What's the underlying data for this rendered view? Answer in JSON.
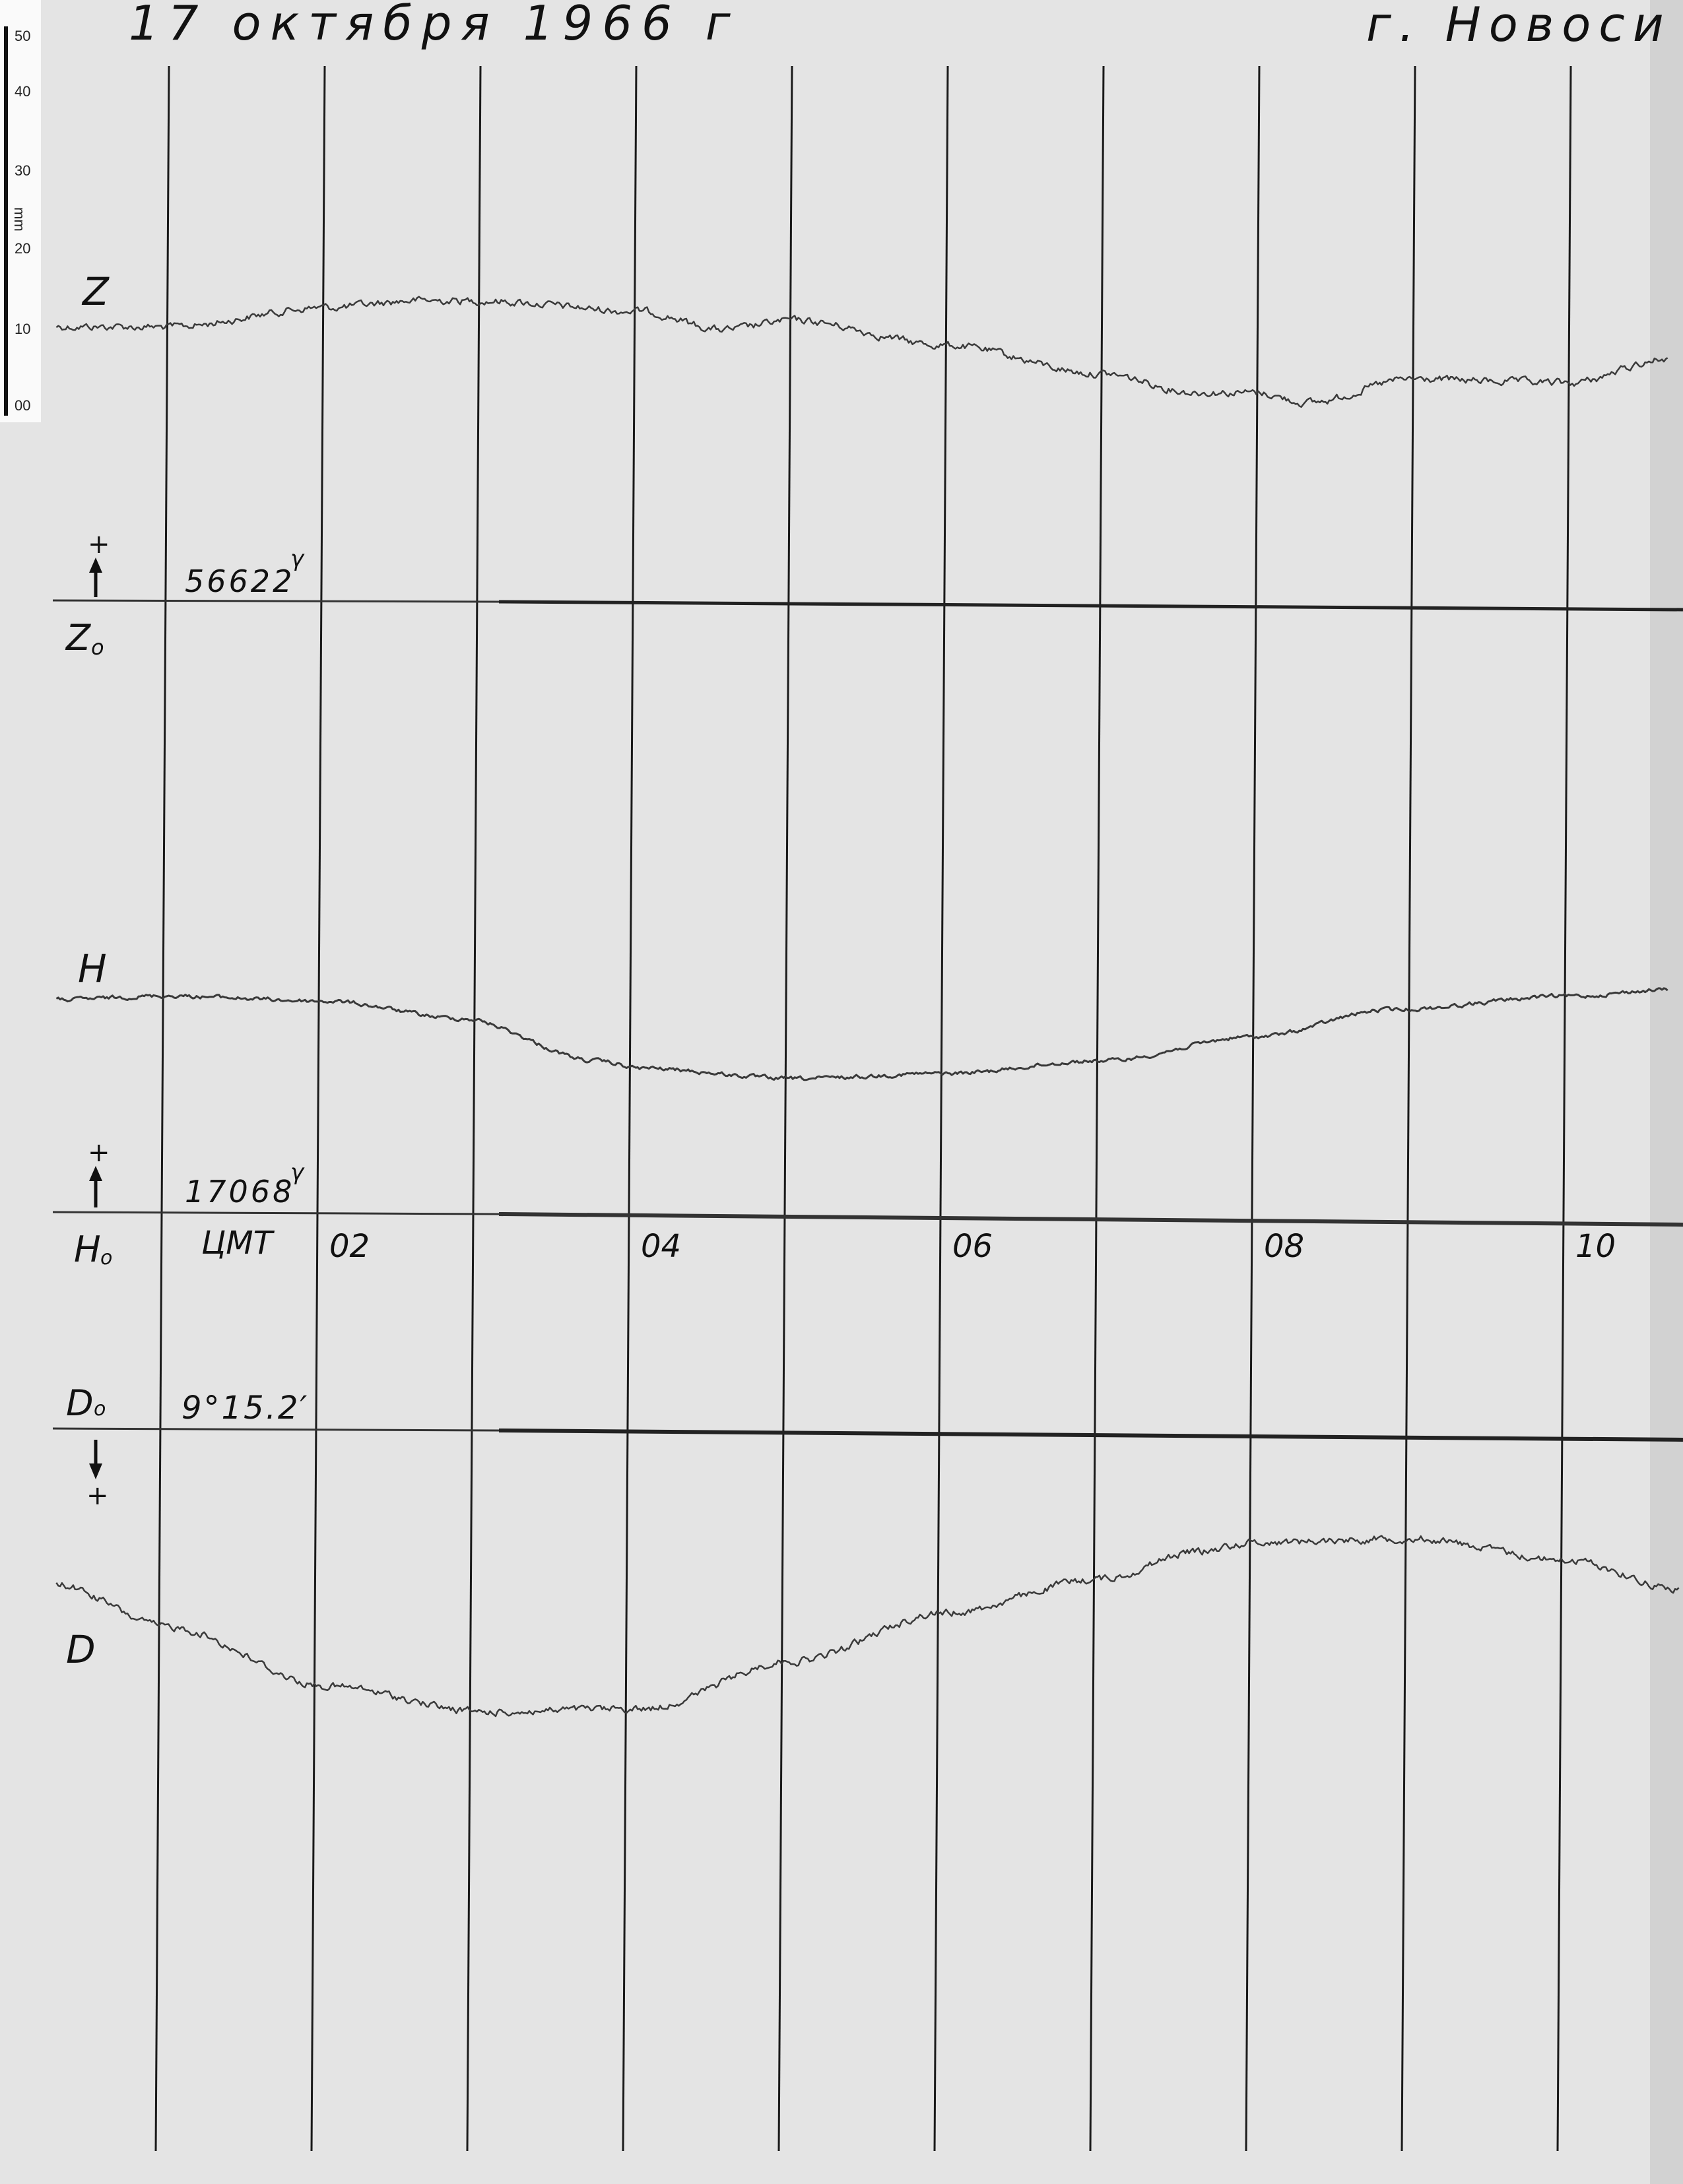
{
  "header": {
    "date": "17 октября 1966 г",
    "place": "г. Новоси"
  },
  "ruler": {
    "unit": "mm",
    "ticks": [
      "50",
      "40",
      "30",
      "20",
      "10",
      "00"
    ]
  },
  "labels": {
    "z": "Z",
    "z0": "Z",
    "z0_sub": "o",
    "z0_value": "56622",
    "z0_unit": "γ",
    "h": "H",
    "h0": "H",
    "h0_sub": "o",
    "h0_value": "17068",
    "h0_unit": "γ",
    "time_system": "ЦМТ",
    "d0": "D",
    "d0_sub": "o",
    "d0_value": "9°15.2′",
    "d": "D",
    "plus": "+"
  },
  "colors": {
    "paper": "#e4e4e4",
    "ink": "#111111",
    "trace": "#3a3a3a"
  },
  "chart_data": {
    "type": "line",
    "title": "17 октября 1966 г",
    "xlabel": "ЦМТ",
    "x_unit": "hours",
    "xticks": [
      "02",
      "04",
      "06",
      "08",
      "10"
    ],
    "xlim": [
      0.3,
      11.7
    ],
    "grid": "vertical hourly lines",
    "y_unit": "mm deflection from baseline",
    "series": [
      {
        "name": "Z",
        "baseline": "56622γ",
        "x": [
          0.29,
          1.0,
          2.03,
          2.61,
          3.03,
          4.04,
          4.57,
          5.02,
          6.0,
          7.0,
          7.61,
          7.99,
          8.32,
          8.99,
          10.0,
          10.64
        ],
        "y": [
          36.7,
          36.7,
          39.4,
          40.4,
          40.4,
          39.1,
          36.7,
          38.0,
          34.8,
          31.1,
          28.7,
          28.7,
          27.4,
          30.6,
          30.2,
          33.5
        ]
      },
      {
        "name": "H",
        "baseline": "17068γ",
        "x": [
          0.29,
          1.0,
          2.03,
          2.88,
          3.77,
          4.04,
          5.02,
          6.0,
          7.0,
          7.99,
          8.86,
          10.0,
          10.64
        ],
        "y": [
          28.5,
          29.1,
          28.5,
          26.3,
          20.7,
          19.8,
          18.5,
          19.3,
          21.1,
          24.4,
          28.1,
          30.0,
          30.9
        ]
      },
      {
        "name": "D",
        "baseline": "9°15.2′",
        "direction": "downward positive",
        "x": [
          0.29,
          1.0,
          2.03,
          3.03,
          4.04,
          5.02,
          6.0,
          7.0,
          7.61,
          7.99,
          8.99,
          10.0,
          10.71
        ],
        "y": [
          20.6,
          26.1,
          33.9,
          37.2,
          36.7,
          30.2,
          23.7,
          19.1,
          15.4,
          14.1,
          13.5,
          16.3,
          20.0
        ]
      }
    ]
  }
}
